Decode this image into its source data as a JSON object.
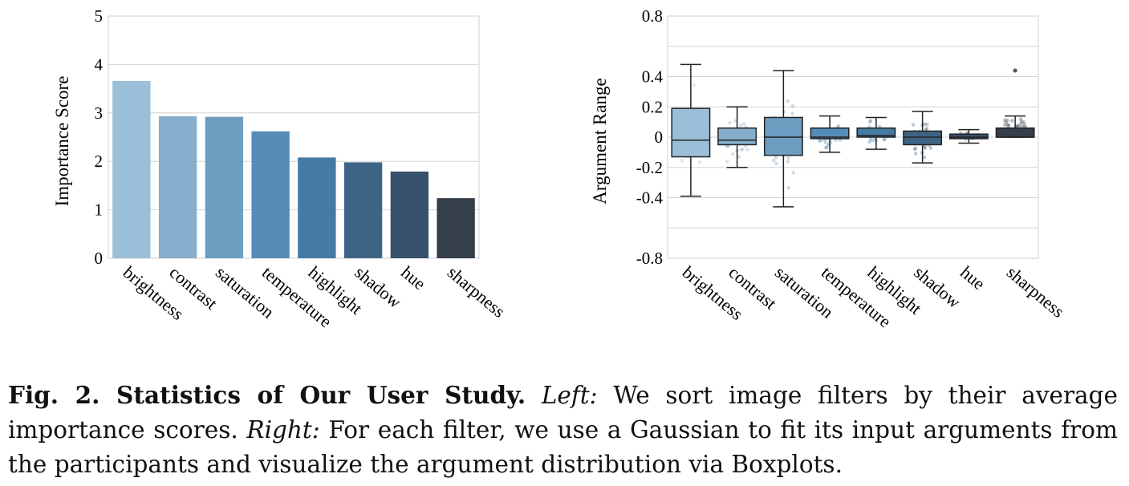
{
  "chart_data": [
    {
      "type": "bar",
      "categories": [
        "brightness",
        "contrast",
        "saturation",
        "temperature",
        "highlight",
        "shadow",
        "hue",
        "sharpness"
      ],
      "values": [
        3.66,
        2.93,
        2.92,
        2.62,
        2.08,
        1.98,
        1.79,
        1.24
      ],
      "colors": [
        "#9bbfd8",
        "#86aecc",
        "#6e9dc2",
        "#558cb8",
        "#457aa2",
        "#3e6485",
        "#37526a",
        "#353f4a"
      ],
      "title": "",
      "xlabel": "",
      "ylabel": "Importance Score",
      "ylim": [
        0,
        5
      ],
      "yticks": [
        "0",
        "1",
        "2",
        "3",
        "4",
        "5"
      ],
      "grid": true
    },
    {
      "type": "box",
      "categories": [
        "brightness",
        "contrast",
        "saturation",
        "temperature",
        "highlight",
        "shadow",
        "hue",
        "sharpness"
      ],
      "colors": [
        "#9bbfd8",
        "#86aecc",
        "#6e9dc2",
        "#558cb8",
        "#457aa2",
        "#3e6485",
        "#37526a",
        "#353f4a"
      ],
      "boxes": [
        {
          "name": "brightness",
          "whisker_low": -0.39,
          "q1": -0.13,
          "median": -0.02,
          "q3": 0.19,
          "whisker_high": 0.48,
          "outliers": []
        },
        {
          "name": "contrast",
          "whisker_low": -0.2,
          "q1": -0.05,
          "median": -0.02,
          "q3": 0.06,
          "whisker_high": 0.2,
          "outliers": []
        },
        {
          "name": "saturation",
          "whisker_low": -0.46,
          "q1": -0.12,
          "median": 0.0,
          "q3": 0.13,
          "whisker_high": 0.44,
          "outliers": []
        },
        {
          "name": "temperature",
          "whisker_low": -0.1,
          "q1": -0.01,
          "median": 0.0,
          "q3": 0.06,
          "whisker_high": 0.14,
          "outliers": []
        },
        {
          "name": "highlight",
          "whisker_low": -0.08,
          "q1": 0.0,
          "median": 0.01,
          "q3": 0.06,
          "whisker_high": 0.13,
          "outliers": []
        },
        {
          "name": "shadow",
          "whisker_low": -0.17,
          "q1": -0.05,
          "median": 0.0,
          "q3": 0.04,
          "whisker_high": 0.17,
          "outliers": []
        },
        {
          "name": "hue",
          "whisker_low": -0.04,
          "q1": -0.01,
          "median": 0.0,
          "q3": 0.02,
          "whisker_high": 0.05,
          "outliers": []
        },
        {
          "name": "sharpness",
          "whisker_low": 0.0,
          "q1": 0.0,
          "median": 0.0,
          "q3": 0.06,
          "whisker_high": 0.14,
          "outliers": [
            0.44
          ]
        }
      ],
      "title": "",
      "xlabel": "",
      "ylabel": "Argument Range",
      "ylim": [
        -0.8,
        0.8
      ],
      "yticks": [
        "-0.8",
        "-0.4",
        "-0.2",
        "0",
        "0.2",
        "0.4",
        "0.8"
      ],
      "grid": true
    }
  ],
  "caption": {
    "label": "Fig. 2. Statistics of Our User Study.",
    "left_label": "Left:",
    "left_text": "We sort image filters by their average importance scores.",
    "right_label": "Right:",
    "right_text": "For each filter, we use a Gaussian to fit its input arguments from the participants and visualize the argument distribution via Boxplots."
  }
}
